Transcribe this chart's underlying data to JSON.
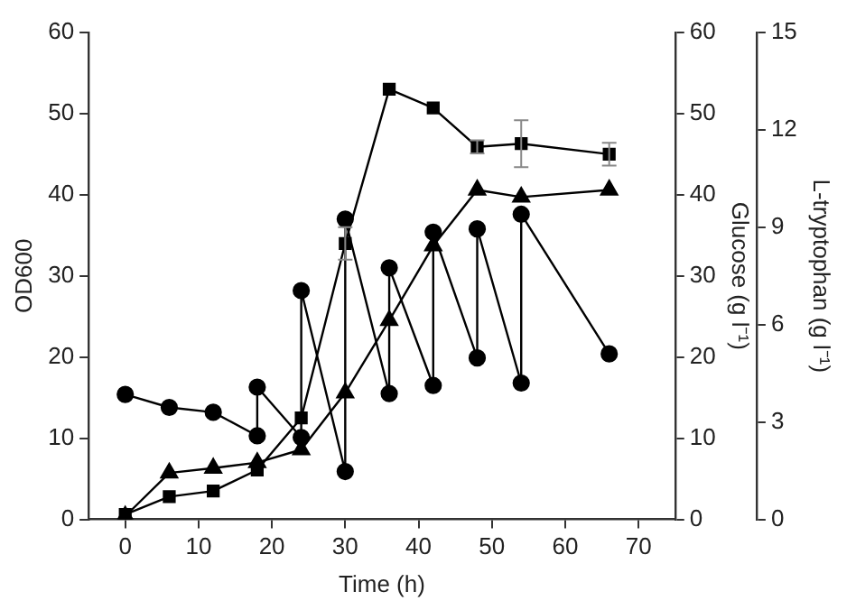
{
  "chart_data": {
    "type": "line",
    "xlabel": "Time (h)",
    "ylabel": "OD600",
    "y2label": "Glucose (g l⁻¹)",
    "y3label": "L-tryptophan (g l⁻¹)",
    "xlim": [
      -5,
      75
    ],
    "xticks": [
      0,
      10,
      20,
      30,
      40,
      50,
      60,
      70
    ],
    "ylim": [
      0,
      60
    ],
    "yticks": [
      0,
      10,
      20,
      30,
      40,
      50,
      60
    ],
    "y2lim": [
      0,
      60
    ],
    "y2ticks": [
      0,
      10,
      20,
      30,
      40,
      50,
      60
    ],
    "y3lim": [
      0,
      15
    ],
    "y3ticks": [
      0,
      3,
      6,
      9,
      12,
      15
    ],
    "grid": false,
    "legend": false,
    "series": [
      {
        "marker": "square",
        "color": "#000000",
        "x": [
          0,
          6,
          12,
          18,
          24,
          30,
          36,
          42,
          48,
          54,
          66
        ],
        "values": [
          0.6,
          2.8,
          3.5,
          6.1,
          12.5,
          34,
          53,
          50.7,
          45.9,
          46.3,
          45
        ],
        "errors": [
          null,
          null,
          null,
          null,
          null,
          2,
          null,
          null,
          0.8,
          2.9,
          1.4
        ]
      },
      {
        "marker": "circle",
        "color": "#000000",
        "axis": "y2",
        "x": [
          0,
          6,
          12,
          18,
          18,
          24,
          24,
          30,
          30,
          36,
          36,
          42,
          42,
          48,
          48,
          54,
          54,
          66
        ],
        "values": [
          15.4,
          13.8,
          13.2,
          10.3,
          16.3,
          10.1,
          28.2,
          5.9,
          37,
          15.5,
          31,
          16.5,
          35.4,
          19.9,
          35.8,
          16.8,
          37.6,
          20.4
        ]
      },
      {
        "marker": "triangle",
        "color": "#000000",
        "axis": "y3",
        "x": [
          0,
          6,
          12,
          18,
          24,
          30,
          36,
          42,
          48,
          54,
          66
        ],
        "values": [
          0.1,
          1.43,
          1.58,
          1.75,
          2.15,
          3.9,
          6.13,
          8.43,
          10.15,
          9.93,
          10.15
        ]
      }
    ]
  }
}
